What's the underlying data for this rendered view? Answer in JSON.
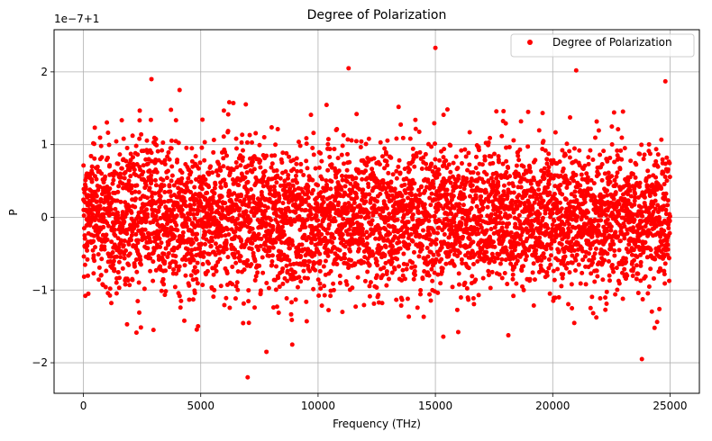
{
  "chart_data": {
    "type": "scatter",
    "title": "Degree of Polarization",
    "xlabel": "Frequency (THz)",
    "ylabel": "P",
    "offset_text": "1e−7+1",
    "xlim": [
      -1250,
      26250
    ],
    "ylim": [
      -2.42,
      2.58
    ],
    "xticks": [
      0,
      5000,
      10000,
      15000,
      20000,
      25000
    ],
    "xtick_labels": [
      "0",
      "5000",
      "10000",
      "15000",
      "20000",
      "25000"
    ],
    "yticks": [
      -2,
      -1,
      0,
      1,
      2
    ],
    "ytick_labels": [
      "−2",
      "−1",
      "0",
      "1",
      "2"
    ],
    "grid": true,
    "legend_position": "top-right",
    "series": [
      {
        "name": "Degree of Polarization",
        "color": "#ff0000",
        "x_range": [
          0,
          25000
        ],
        "num_points": 5000,
        "distribution": "noise with standard deviation ~0.5 (units of 1e-7) around 0",
        "notable_points": [
          {
            "x": 2900,
            "y": 1.9
          },
          {
            "x": 4100,
            "y": 1.75
          },
          {
            "x": 7000,
            "y": -2.2
          },
          {
            "x": 7800,
            "y": -1.85
          },
          {
            "x": 8900,
            "y": -1.75
          },
          {
            "x": 11300,
            "y": 2.05
          },
          {
            "x": 15000,
            "y": 2.33
          },
          {
            "x": 21000,
            "y": 2.02
          },
          {
            "x": 23800,
            "y": -1.95
          },
          {
            "x": 24800,
            "y": 1.87
          }
        ]
      }
    ]
  }
}
